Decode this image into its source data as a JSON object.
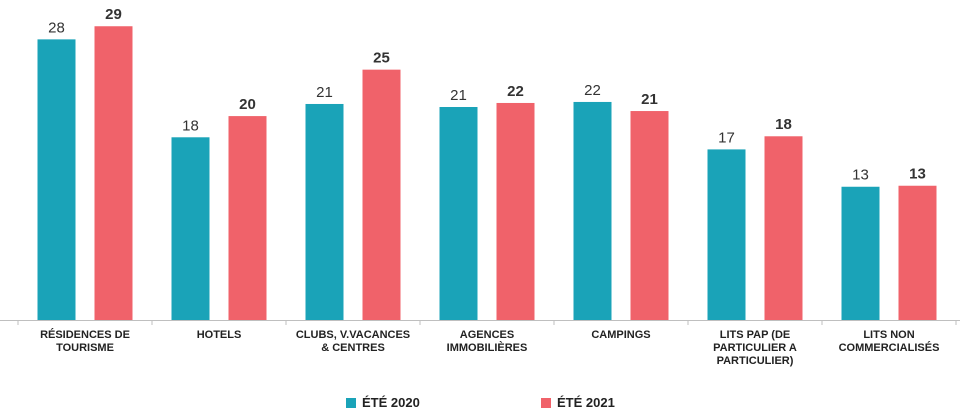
{
  "chart_data": {
    "type": "bar",
    "categories": [
      "RÉSIDENCES DE TOURISME",
      "HOTELS",
      "CLUBS, V.VACANCES & CENTRES",
      "AGENCES IMMOBILIÈRES",
      "CAMPINGS",
      "LITS PAP (DE PARTICULIER A PARTICULIER)",
      "LITS NON COMMERCIALISÉS"
    ],
    "series": [
      {
        "name": "ÉTÉ 2020",
        "color": "#1aa3b8",
        "values": [
          27.8,
          18.1,
          21.4,
          21.1,
          21.6,
          16.9,
          13.2
        ],
        "value_labels": [
          "28",
          "18",
          "21",
          "21",
          "22",
          "17",
          "13"
        ]
      },
      {
        "name": "ÉTÉ 2021",
        "color": "#f0626a",
        "values": [
          29.1,
          20.2,
          24.8,
          21.5,
          20.7,
          18.2,
          13.3
        ],
        "value_labels": [
          "29",
          "20",
          "25",
          "22",
          "21",
          "18",
          "13"
        ]
      }
    ],
    "ylim": [
      0,
      31.7
    ]
  }
}
